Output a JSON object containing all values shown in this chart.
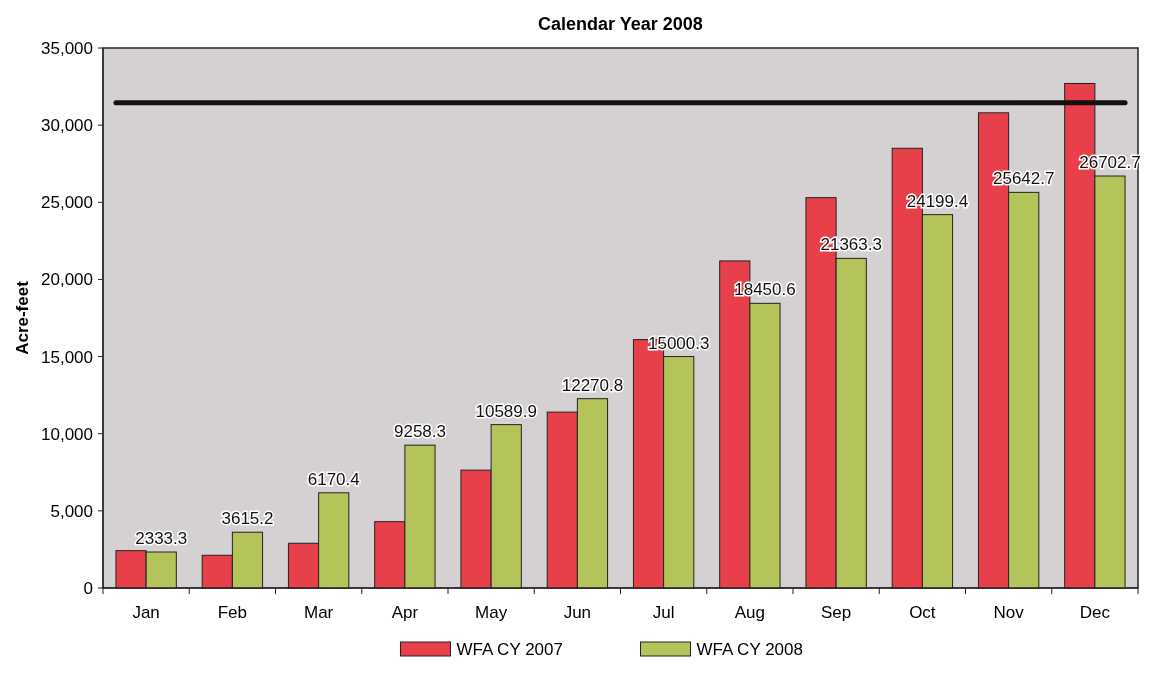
{
  "chart_data": {
    "type": "bar",
    "title": "Calendar Year 2008",
    "ylabel": "Acre-feet",
    "categories": [
      "Jan",
      "Feb",
      "Mar",
      "Apr",
      "May",
      "Jun",
      "Jul",
      "Aug",
      "Sep",
      "Oct",
      "Nov",
      "Dec"
    ],
    "series": [
      {
        "name": "WFA CY 2007",
        "color": "#e8404a",
        "values": [
          2420,
          2120,
          2900,
          4300,
          7640,
          11400,
          16100,
          21200,
          25300,
          28500,
          30800,
          32700
        ]
      },
      {
        "name": "WFA CY 2008",
        "color": "#b5c45a",
        "values": [
          2333.3,
          3615.2,
          6170.4,
          9258.3,
          10589.9,
          12270.8,
          15000.3,
          18450.6,
          21363.3,
          24199.4,
          25642.7,
          26702.7
        ],
        "value_labels": [
          "2333.3",
          "3615.2",
          "6170.4",
          "9258.3",
          "10589.9",
          "12270.8",
          "15000.3",
          "18450.6",
          "21363.3",
          "24199.4",
          "25642.7",
          "26702.7"
        ]
      }
    ],
    "ylim": [
      0,
      35000
    ],
    "yticks": [
      {
        "value": 0,
        "label": "0"
      },
      {
        "value": 5000,
        "label": "5,000"
      },
      {
        "value": 10000,
        "label": "10,000"
      },
      {
        "value": 15000,
        "label": "15,000"
      },
      {
        "value": 20000,
        "label": "20,000"
      },
      {
        "value": 25000,
        "label": "25,000"
      },
      {
        "value": 30000,
        "label": "30,000"
      },
      {
        "value": 35000,
        "label": "35,000"
      }
    ],
    "ref_lines": [
      {
        "axis": "y",
        "value": 31450,
        "color": "#111111"
      }
    ],
    "grid": false,
    "legend": "bottom"
  }
}
